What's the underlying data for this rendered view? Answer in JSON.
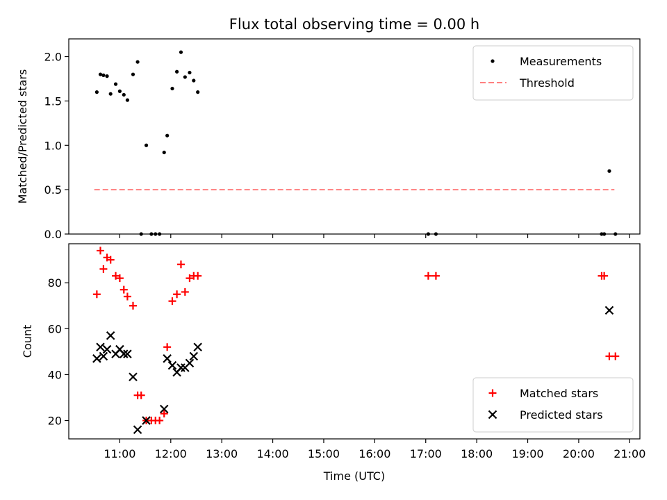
{
  "chart_data": {
    "type": "scatter",
    "title": "Flux total observing time = 0.00 h",
    "x_axis": {
      "label": "Time (UTC)",
      "unit": "hours UTC",
      "range": [
        10.0,
        21.2
      ],
      "tick_values": [
        11,
        12,
        13,
        14,
        15,
        16,
        17,
        18,
        19,
        20,
        21
      ],
      "tick_labels": [
        "11:00",
        "12:00",
        "13:00",
        "14:00",
        "15:00",
        "16:00",
        "17:00",
        "18:00",
        "19:00",
        "20:00",
        "21:00"
      ]
    },
    "panels": [
      {
        "ylabel": "Matched/Predicted stars",
        "ylim": [
          0,
          2.2
        ],
        "yticks": [
          0.0,
          0.5,
          1.0,
          1.5,
          2.0
        ],
        "ytick_labels": [
          "0.0",
          "0.5",
          "1.0",
          "1.5",
          "2.0"
        ],
        "legend_position": "top-right",
        "series": [
          {
            "name": "Measurements",
            "marker": "dot",
            "color": "#000000",
            "points": [
              [
                10.55,
                1.6
              ],
              [
                10.62,
                1.8
              ],
              [
                10.68,
                1.79
              ],
              [
                10.75,
                1.78
              ],
              [
                10.82,
                1.58
              ],
              [
                10.92,
                1.69
              ],
              [
                11.0,
                1.61
              ],
              [
                11.08,
                1.57
              ],
              [
                11.15,
                1.51
              ],
              [
                11.26,
                1.8
              ],
              [
                11.35,
                1.94
              ],
              [
                11.42,
                0.0
              ],
              [
                11.52,
                1.0
              ],
              [
                11.62,
                0.0
              ],
              [
                11.7,
                0.0
              ],
              [
                11.78,
                0.0
              ],
              [
                11.87,
                0.92
              ],
              [
                11.93,
                1.11
              ],
              [
                12.03,
                1.64
              ],
              [
                12.12,
                1.83
              ],
              [
                12.2,
                2.05
              ],
              [
                12.28,
                1.77
              ],
              [
                12.37,
                1.82
              ],
              [
                12.45,
                1.73
              ],
              [
                12.53,
                1.6
              ],
              [
                17.05,
                0.0
              ],
              [
                17.2,
                0.0
              ],
              [
                20.45,
                0.0
              ],
              [
                20.5,
                0.0
              ],
              [
                20.6,
                0.71
              ],
              [
                20.72,
                0.0
              ]
            ]
          },
          {
            "name": "Threshold",
            "marker": "dashed-line",
            "color": "#ff7f7f",
            "points": [
              [
                10.5,
                0.5
              ],
              [
                20.7,
                0.5
              ]
            ]
          }
        ]
      },
      {
        "ylabel": "Count",
        "ylim": [
          12,
          97
        ],
        "yticks": [
          20,
          40,
          60,
          80
        ],
        "ytick_labels": [
          "20",
          "40",
          "60",
          "80"
        ],
        "legend_position": "lower-right",
        "series": [
          {
            "name": "Matched stars",
            "marker": "plus",
            "color": "#ff0000",
            "points": [
              [
                10.55,
                75
              ],
              [
                10.62,
                94
              ],
              [
                10.68,
                86
              ],
              [
                10.75,
                91
              ],
              [
                10.82,
                90
              ],
              [
                10.92,
                83
              ],
              [
                11.0,
                82
              ],
              [
                11.08,
                77
              ],
              [
                11.15,
                74
              ],
              [
                11.26,
                70
              ],
              [
                11.35,
                31
              ],
              [
                11.42,
                31
              ],
              [
                11.52,
                20
              ],
              [
                11.62,
                20
              ],
              [
                11.7,
                20
              ],
              [
                11.78,
                20
              ],
              [
                11.87,
                23
              ],
              [
                11.93,
                52
              ],
              [
                12.03,
                72
              ],
              [
                12.12,
                75
              ],
              [
                12.2,
                88
              ],
              [
                12.28,
                76
              ],
              [
                12.37,
                82
              ],
              [
                12.45,
                83
              ],
              [
                12.53,
                83
              ],
              [
                17.05,
                83
              ],
              [
                17.2,
                83
              ],
              [
                20.45,
                83
              ],
              [
                20.5,
                83
              ],
              [
                20.6,
                48
              ],
              [
                20.72,
                48
              ]
            ]
          },
          {
            "name": "Predicted stars",
            "marker": "x",
            "color": "#000000",
            "points": [
              [
                10.55,
                47
              ],
              [
                10.62,
                52
              ],
              [
                10.68,
                48
              ],
              [
                10.75,
                51
              ],
              [
                10.82,
                57
              ],
              [
                10.92,
                49
              ],
              [
                11.0,
                51
              ],
              [
                11.08,
                49
              ],
              [
                11.15,
                49
              ],
              [
                11.26,
                39
              ],
              [
                11.35,
                16
              ],
              [
                11.52,
                20
              ],
              [
                11.87,
                25
              ],
              [
                11.93,
                47
              ],
              [
                12.03,
                44
              ],
              [
                12.12,
                41
              ],
              [
                12.2,
                43
              ],
              [
                12.28,
                43
              ],
              [
                12.37,
                45
              ],
              [
                12.45,
                48
              ],
              [
                12.53,
                52
              ],
              [
                20.6,
                68
              ]
            ]
          }
        ]
      }
    ]
  }
}
